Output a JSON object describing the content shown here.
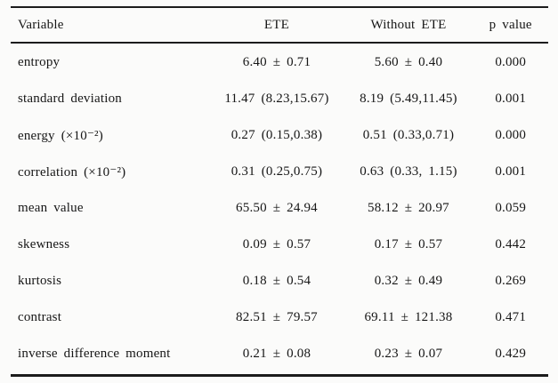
{
  "table": {
    "columns": {
      "variable": "Variable",
      "ete": "ETE",
      "without_ete": "Without ETE",
      "p_value": "p value"
    },
    "rows": [
      {
        "variable": "entropy",
        "ete": "6.40 ± 0.71",
        "without_ete": "5.60 ± 0.40",
        "p_value": "0.000"
      },
      {
        "variable": "standard deviation",
        "ete": "11.47 (8.23,15.67)",
        "without_ete": "8.19 (5.49,11.45)",
        "p_value": "0.001"
      },
      {
        "variable": "energy (×10⁻²)",
        "ete": "0.27 (0.15,0.38)",
        "without_ete": "0.51 (0.33,0.71)",
        "p_value": "0.000"
      },
      {
        "variable": "correlation (×10⁻²)",
        "ete": "0.31 (0.25,0.75)",
        "without_ete": "0.63 (0.33, 1.15)",
        "p_value": "0.001"
      },
      {
        "variable": "mean value",
        "ete": "65.50 ± 24.94",
        "without_ete": "58.12 ± 20.97",
        "p_value": "0.059"
      },
      {
        "variable": "skewness",
        "ete": "0.09 ± 0.57",
        "without_ete": "0.17 ± 0.57",
        "p_value": "0.442"
      },
      {
        "variable": "kurtosis",
        "ete": "0.18 ± 0.54",
        "without_ete": "0.32 ± 0.49",
        "p_value": "0.269"
      },
      {
        "variable": "contrast",
        "ete": "82.51 ± 79.57",
        "without_ete": "69.11 ± 121.38",
        "p_value": "0.471"
      },
      {
        "variable": "inverse difference moment",
        "ete": "0.21 ± 0.08",
        "without_ete": "0.23 ± 0.07",
        "p_value": "0.429"
      }
    ],
    "colors": {
      "rule": "#1c1c1c",
      "text": "#161616",
      "background": "#fbfbfa"
    }
  }
}
